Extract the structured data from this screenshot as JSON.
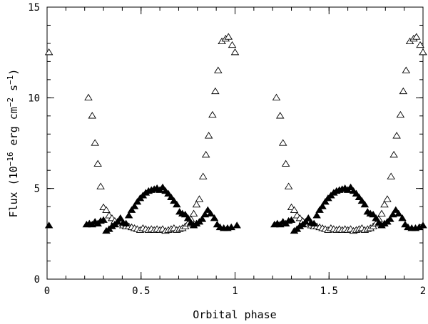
{
  "chart_data": {
    "type": "scatter",
    "xlabel": "Orbital phase",
    "ylabel": "Flux (10",
    "ylabel_exp1": "−16",
    "ylabel_mid": " erg cm",
    "ylabel_exp2": "−2",
    "ylabel_mid2": " s",
    "ylabel_exp3": "−1",
    "ylabel_end": ")",
    "xlim": [
      0,
      2
    ],
    "ylim": [
      0,
      15
    ],
    "x_ticks": [
      {
        "value": 0,
        "label": "0"
      },
      {
        "value": 0.5,
        "label": "0.5"
      },
      {
        "value": 1,
        "label": "1"
      },
      {
        "value": 1.5,
        "label": "1.5"
      },
      {
        "value": 2,
        "label": "2"
      }
    ],
    "y_ticks": [
      {
        "value": 0,
        "label": "0"
      },
      {
        "value": 5,
        "label": "5"
      },
      {
        "value": 10,
        "label": "10"
      },
      {
        "value": 15,
        "label": "15"
      }
    ],
    "x_minor_step": 0.1,
    "y_minor_step": 1,
    "series": [
      {
        "marker": "open-triangle",
        "color": "#000000",
        "points": [
          [
            0.01,
            12.5
          ],
          [
            0.22,
            10.0
          ],
          [
            0.24,
            9.0
          ],
          [
            0.255,
            7.5
          ],
          [
            0.27,
            6.35
          ],
          [
            0.285,
            5.1
          ],
          [
            0.3,
            3.95
          ],
          [
            0.315,
            3.8
          ],
          [
            0.33,
            3.5
          ],
          [
            0.345,
            3.35
          ],
          [
            0.36,
            3.2
          ],
          [
            0.375,
            3.1
          ],
          [
            0.39,
            3.05
          ],
          [
            0.405,
            2.95
          ],
          [
            0.42,
            2.9
          ],
          [
            0.435,
            2.9
          ],
          [
            0.45,
            2.85
          ],
          [
            0.465,
            2.8
          ],
          [
            0.48,
            2.75
          ],
          [
            0.495,
            2.7
          ],
          [
            0.51,
            2.8
          ],
          [
            0.525,
            2.75
          ],
          [
            0.54,
            2.7
          ],
          [
            0.555,
            2.75
          ],
          [
            0.57,
            2.7
          ],
          [
            0.585,
            2.75
          ],
          [
            0.6,
            2.7
          ],
          [
            0.615,
            2.75
          ],
          [
            0.63,
            2.65
          ],
          [
            0.645,
            2.7
          ],
          [
            0.66,
            2.75
          ],
          [
            0.675,
            2.8
          ],
          [
            0.69,
            2.7
          ],
          [
            0.705,
            2.75
          ],
          [
            0.72,
            2.8
          ],
          [
            0.735,
            2.9
          ],
          [
            0.75,
            3.05
          ],
          [
            0.765,
            3.3
          ],
          [
            0.78,
            3.6
          ],
          [
            0.795,
            4.1
          ],
          [
            0.81,
            4.4
          ],
          [
            0.83,
            5.65
          ],
          [
            0.845,
            6.85
          ],
          [
            0.86,
            7.9
          ],
          [
            0.88,
            9.05
          ],
          [
            0.895,
            10.35
          ],
          [
            0.91,
            11.5
          ],
          [
            0.93,
            13.1
          ],
          [
            0.95,
            13.25
          ],
          [
            0.965,
            13.35
          ],
          [
            0.985,
            12.9
          ],
          [
            1.0,
            12.5
          ],
          [
            1.22,
            10.0
          ],
          [
            1.24,
            9.0
          ],
          [
            1.255,
            7.5
          ],
          [
            1.27,
            6.35
          ],
          [
            1.285,
            5.1
          ],
          [
            1.3,
            3.95
          ],
          [
            1.315,
            3.8
          ],
          [
            1.33,
            3.5
          ],
          [
            1.345,
            3.35
          ],
          [
            1.36,
            3.2
          ],
          [
            1.375,
            3.1
          ],
          [
            1.39,
            3.05
          ],
          [
            1.405,
            2.95
          ],
          [
            1.42,
            2.9
          ],
          [
            1.435,
            2.9
          ],
          [
            1.45,
            2.85
          ],
          [
            1.465,
            2.8
          ],
          [
            1.48,
            2.75
          ],
          [
            1.495,
            2.7
          ],
          [
            1.51,
            2.8
          ],
          [
            1.525,
            2.75
          ],
          [
            1.54,
            2.7
          ],
          [
            1.555,
            2.75
          ],
          [
            1.57,
            2.7
          ],
          [
            1.585,
            2.75
          ],
          [
            1.6,
            2.7
          ],
          [
            1.615,
            2.75
          ],
          [
            1.63,
            2.65
          ],
          [
            1.645,
            2.7
          ],
          [
            1.66,
            2.75
          ],
          [
            1.675,
            2.8
          ],
          [
            1.69,
            2.7
          ],
          [
            1.705,
            2.75
          ],
          [
            1.72,
            2.8
          ],
          [
            1.735,
            2.9
          ],
          [
            1.75,
            3.05
          ],
          [
            1.765,
            3.3
          ],
          [
            1.78,
            3.6
          ],
          [
            1.795,
            4.1
          ],
          [
            1.81,
            4.4
          ],
          [
            1.83,
            5.65
          ],
          [
            1.845,
            6.85
          ],
          [
            1.86,
            7.9
          ],
          [
            1.88,
            9.05
          ],
          [
            1.895,
            10.35
          ],
          [
            1.91,
            11.5
          ],
          [
            1.93,
            13.1
          ],
          [
            1.95,
            13.25
          ],
          [
            1.965,
            13.35
          ],
          [
            1.985,
            12.9
          ],
          [
            2.0,
            12.5
          ]
        ]
      },
      {
        "marker": "filled-triangle",
        "color": "#000000",
        "points": [
          [
            0.01,
            2.95
          ],
          [
            0.21,
            3.0
          ],
          [
            0.225,
            3.05
          ],
          [
            0.24,
            3.0
          ],
          [
            0.255,
            3.15
          ],
          [
            0.27,
            3.05
          ],
          [
            0.285,
            3.2
          ],
          [
            0.3,
            3.25
          ],
          [
            0.315,
            2.65
          ],
          [
            0.33,
            2.75
          ],
          [
            0.345,
            2.9
          ],
          [
            0.36,
            3.0
          ],
          [
            0.375,
            3.15
          ],
          [
            0.39,
            3.35
          ],
          [
            0.405,
            3.1
          ],
          [
            0.42,
            3.05
          ],
          [
            0.435,
            3.5
          ],
          [
            0.45,
            3.8
          ],
          [
            0.465,
            4.0
          ],
          [
            0.48,
            4.25
          ],
          [
            0.495,
            4.45
          ],
          [
            0.51,
            4.6
          ],
          [
            0.525,
            4.75
          ],
          [
            0.54,
            4.85
          ],
          [
            0.555,
            4.9
          ],
          [
            0.57,
            4.95
          ],
          [
            0.585,
            5.0
          ],
          [
            0.6,
            4.9
          ],
          [
            0.615,
            5.05
          ],
          [
            0.63,
            4.85
          ],
          [
            0.645,
            4.7
          ],
          [
            0.66,
            4.5
          ],
          [
            0.675,
            4.3
          ],
          [
            0.69,
            4.1
          ],
          [
            0.705,
            3.7
          ],
          [
            0.72,
            3.6
          ],
          [
            0.735,
            3.55
          ],
          [
            0.75,
            3.35
          ],
          [
            0.765,
            3.1
          ],
          [
            0.78,
            2.95
          ],
          [
            0.795,
            3.05
          ],
          [
            0.81,
            3.15
          ],
          [
            0.825,
            3.3
          ],
          [
            0.84,
            3.55
          ],
          [
            0.855,
            3.8
          ],
          [
            0.87,
            3.6
          ],
          [
            0.89,
            3.35
          ],
          [
            0.905,
            3.0
          ],
          [
            0.92,
            2.85
          ],
          [
            0.94,
            2.8
          ],
          [
            0.96,
            2.8
          ],
          [
            0.98,
            2.85
          ],
          [
            1.01,
            2.95
          ],
          [
            1.21,
            3.0
          ],
          [
            1.225,
            3.05
          ],
          [
            1.24,
            3.0
          ],
          [
            1.255,
            3.15
          ],
          [
            1.27,
            3.05
          ],
          [
            1.285,
            3.2
          ],
          [
            1.3,
            3.25
          ],
          [
            1.315,
            2.65
          ],
          [
            1.33,
            2.75
          ],
          [
            1.345,
            2.9
          ],
          [
            1.36,
            3.0
          ],
          [
            1.375,
            3.15
          ],
          [
            1.39,
            3.35
          ],
          [
            1.405,
            3.1
          ],
          [
            1.42,
            3.05
          ],
          [
            1.435,
            3.5
          ],
          [
            1.45,
            3.8
          ],
          [
            1.465,
            4.0
          ],
          [
            1.48,
            4.25
          ],
          [
            1.495,
            4.45
          ],
          [
            1.51,
            4.6
          ],
          [
            1.525,
            4.75
          ],
          [
            1.54,
            4.85
          ],
          [
            1.555,
            4.9
          ],
          [
            1.57,
            4.95
          ],
          [
            1.585,
            5.0
          ],
          [
            1.6,
            4.9
          ],
          [
            1.615,
            5.05
          ],
          [
            1.63,
            4.85
          ],
          [
            1.645,
            4.7
          ],
          [
            1.66,
            4.5
          ],
          [
            1.675,
            4.3
          ],
          [
            1.69,
            4.1
          ],
          [
            1.705,
            3.7
          ],
          [
            1.72,
            3.6
          ],
          [
            1.735,
            3.55
          ],
          [
            1.75,
            3.35
          ],
          [
            1.765,
            3.1
          ],
          [
            1.78,
            2.95
          ],
          [
            1.795,
            3.05
          ],
          [
            1.81,
            3.15
          ],
          [
            1.825,
            3.3
          ],
          [
            1.84,
            3.55
          ],
          [
            1.855,
            3.8
          ],
          [
            1.87,
            3.6
          ],
          [
            1.89,
            3.35
          ],
          [
            1.905,
            3.0
          ],
          [
            1.92,
            2.85
          ],
          [
            1.94,
            2.8
          ],
          [
            1.96,
            2.8
          ],
          [
            1.98,
            2.85
          ],
          [
            2.0,
            2.95
          ]
        ]
      }
    ]
  }
}
